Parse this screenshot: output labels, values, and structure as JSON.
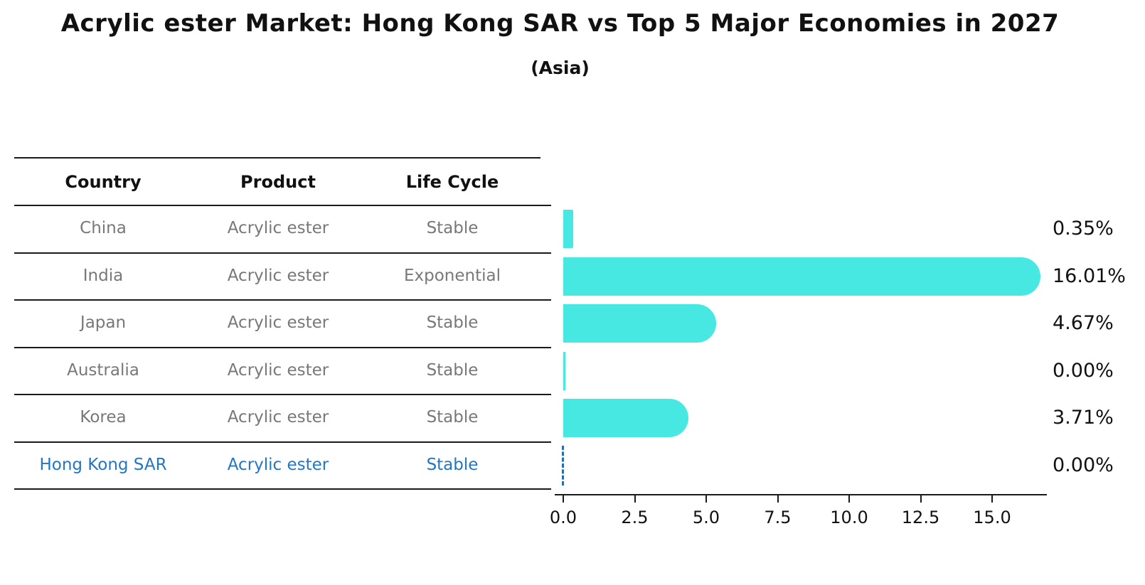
{
  "title": "Acrylic ester Market: Hong Kong SAR vs Top 5 Major Economies in 2027",
  "subtitle": "(Asia)",
  "colors": {
    "bar": "#47E7E2",
    "highlight_text": "#2176C7",
    "highlight_marker": "#2B6FA8",
    "row_text": "#787878",
    "heading_text": "#111111",
    "line": "#1a1a1a"
  },
  "table": {
    "headers": [
      "Country",
      "Product",
      "Life Cycle"
    ]
  },
  "chart_data": {
    "type": "bar",
    "orientation": "horizontal",
    "title": "Acrylic ester Market: Hong Kong SAR vs Top 5 Major Economies in 2027",
    "subtitle": "(Asia)",
    "categories": [
      "China",
      "India",
      "Japan",
      "Australia",
      "Korea",
      "Hong Kong SAR"
    ],
    "values": [
      0.35,
      16.01,
      4.67,
      0.0,
      3.71,
      0.0
    ],
    "rows": [
      {
        "country": "China",
        "product": "Acrylic ester",
        "life_cycle": "Stable",
        "value": 0.35,
        "value_label": "0.35%",
        "highlight": false
      },
      {
        "country": "India",
        "product": "Acrylic ester",
        "life_cycle": "Exponential",
        "value": 16.01,
        "value_label": "16.01%",
        "highlight": false
      },
      {
        "country": "Japan",
        "product": "Acrylic ester",
        "life_cycle": "Stable",
        "value": 4.67,
        "value_label": "4.67%",
        "highlight": false
      },
      {
        "country": "Australia",
        "product": "Acrylic ester",
        "life_cycle": "Stable",
        "value": 0.0,
        "value_label": "0.00%",
        "highlight": false
      },
      {
        "country": "Korea",
        "product": "Acrylic ester",
        "life_cycle": "Stable",
        "value": 3.71,
        "value_label": "3.71%",
        "highlight": false
      },
      {
        "country": "Hong Kong SAR",
        "product": "Acrylic ester",
        "life_cycle": "Stable",
        "value": 0.0,
        "value_label": "0.00%",
        "highlight": true
      }
    ],
    "x_ticks": [
      0.0,
      2.5,
      5.0,
      7.5,
      10.0,
      12.5,
      15.0
    ],
    "x_tick_labels": [
      "0.0",
      "2.5",
      "5.0",
      "7.5",
      "10.0",
      "12.5",
      "15.0"
    ],
    "xlim": [
      0,
      16.9
    ],
    "grid": false,
    "legend": false,
    "bar_color": "#47E7E2",
    "highlight_row": "Hong Kong SAR",
    "highlight_style": "dashed-zero-marker"
  }
}
